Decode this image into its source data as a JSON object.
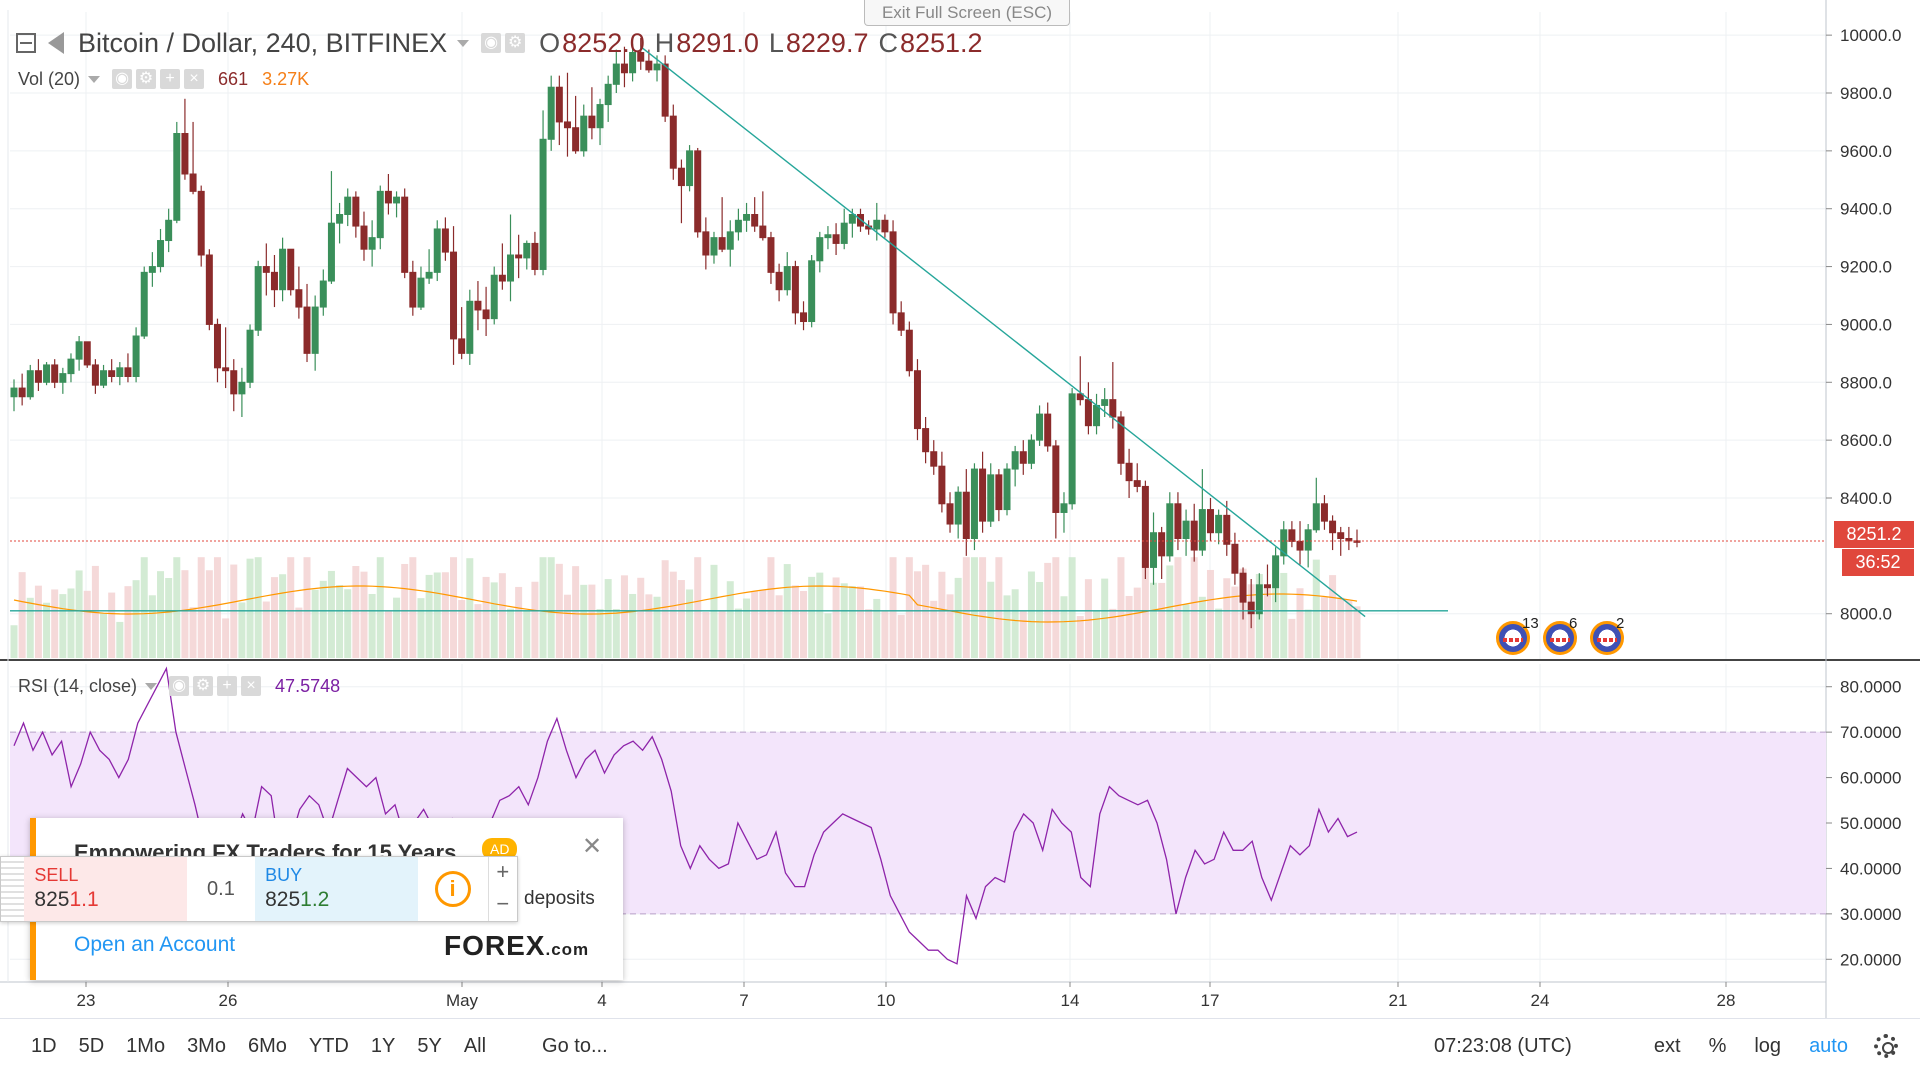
{
  "header": {
    "symbol": "Bitcoin / Dollar, 240, BITFINEX",
    "ohlc": [
      {
        "k": "O",
        "v": "8252.0"
      },
      {
        "k": "H",
        "v": "8291.0"
      },
      {
        "k": "L",
        "v": "8229.7"
      },
      {
        "k": "C",
        "v": "8251.2"
      }
    ]
  },
  "overlay": {
    "exit_fullscreen": "Exit Full Screen (ESC)"
  },
  "volume": {
    "label": "Vol (20)",
    "value": "661",
    "ma_value": "3.27K"
  },
  "rsi": {
    "label": "RSI (14, close)",
    "value": "47.5748"
  },
  "price_axis": {
    "ticks": [
      "10000.0",
      "9800.0",
      "9600.0",
      "9400.0",
      "9200.0",
      "9000.0",
      "8800.0",
      "8600.0",
      "8400.0",
      "8000.0"
    ],
    "last_price": "8251.2",
    "countdown": "36:52"
  },
  "rsi_axis": {
    "ticks": [
      "80.0000",
      "70.0000",
      "60.0000",
      "50.0000",
      "40.0000",
      "30.0000",
      "20.0000"
    ]
  },
  "time_axis": {
    "ticks": [
      "23",
      "26",
      "May",
      "4",
      "7",
      "10",
      "14",
      "17",
      "21",
      "24",
      "28"
    ]
  },
  "events": [
    {
      "count": "13"
    },
    {
      "count": "6"
    },
    {
      "count": "2"
    }
  ],
  "bottom_bar": {
    "ranges": [
      "1D",
      "5D",
      "1Mo",
      "3Mo",
      "6Mo",
      "YTD",
      "1Y",
      "5Y",
      "All"
    ],
    "goto": "Go to...",
    "clock": "07:23:08 (UTC)",
    "ext": "ext",
    "percent": "%",
    "log": "log",
    "auto": "auto"
  },
  "ad": {
    "headline": "Empowering FX Traders for 15 Years",
    "badge": "AD",
    "deposits": "deposits",
    "cta": "Open an Account",
    "logo_main": "FOREX",
    "logo_suffix": ".com"
  },
  "trade_widget": {
    "sell_label": "SELL",
    "sell_price_main": "825",
    "sell_price_tail": "1.1",
    "spread": "0.1",
    "buy_label": "BUY",
    "buy_price_main": "825",
    "buy_price_tail": "1.2"
  },
  "colors": {
    "up": "#3a8f5a",
    "down": "#8b2b2b",
    "trendline": "#26a69a",
    "rsi_line": "#8e24aa",
    "rsi_band": "#f3e5fb",
    "vol_ma": "#ff9800",
    "last_price": "#e0473c"
  },
  "chart_data": {
    "type": "candlestick",
    "candles": [
      [
        8750,
        8810,
        8700,
        8780
      ],
      [
        8780,
        8830,
        8720,
        8750
      ],
      [
        8750,
        8860,
        8740,
        8840
      ],
      [
        8840,
        8880,
        8770,
        8800
      ],
      [
        8800,
        8870,
        8790,
        8860
      ],
      [
        8860,
        8880,
        8780,
        8800
      ],
      [
        8800,
        8850,
        8760,
        8830
      ],
      [
        8830,
        8900,
        8800,
        8880
      ],
      [
        8880,
        8960,
        8840,
        8940
      ],
      [
        8940,
        8920,
        8850,
        8860
      ],
      [
        8860,
        8880,
        8760,
        8790
      ],
      [
        8790,
        8860,
        8780,
        8840
      ],
      [
        8840,
        8880,
        8800,
        8820
      ],
      [
        8820,
        8870,
        8790,
        8850
      ],
      [
        8850,
        8900,
        8800,
        8820
      ],
      [
        8820,
        8990,
        8800,
        8960
      ],
      [
        8960,
        9200,
        8950,
        9180
      ],
      [
        9180,
        9250,
        9130,
        9200
      ],
      [
        9200,
        9330,
        9180,
        9290
      ],
      [
        9290,
        9400,
        9250,
        9360
      ],
      [
        9360,
        9700,
        9350,
        9660
      ],
      [
        9660,
        9780,
        9500,
        9520
      ],
      [
        9520,
        9700,
        9450,
        9460
      ],
      [
        9460,
        9480,
        9200,
        9240
      ],
      [
        9240,
        9260,
        8980,
        9000
      ],
      [
        9000,
        9020,
        8800,
        8850
      ],
      [
        8850,
        8990,
        8780,
        8840
      ],
      [
        8840,
        8880,
        8700,
        8760
      ],
      [
        8760,
        8850,
        8680,
        8800
      ],
      [
        8800,
        9000,
        8780,
        8980
      ],
      [
        8980,
        9220,
        8960,
        9200
      ],
      [
        9200,
        9280,
        9100,
        9180
      ],
      [
        9180,
        9240,
        9060,
        9120
      ],
      [
        9120,
        9300,
        9080,
        9260
      ],
      [
        9260,
        9250,
        9100,
        9120
      ],
      [
        9120,
        9200,
        9020,
        9060
      ],
      [
        9060,
        9140,
        8870,
        8900
      ],
      [
        8900,
        9100,
        8840,
        9060
      ],
      [
        9060,
        9190,
        9030,
        9150
      ],
      [
        9150,
        9530,
        9140,
        9350
      ],
      [
        9350,
        9420,
        9280,
        9380
      ],
      [
        9380,
        9470,
        9340,
        9440
      ],
      [
        9440,
        9460,
        9300,
        9340
      ],
      [
        9340,
        9390,
        9220,
        9260
      ],
      [
        9260,
        9360,
        9200,
        9300
      ],
      [
        9300,
        9480,
        9260,
        9460
      ],
      [
        9460,
        9520,
        9380,
        9420
      ],
      [
        9420,
        9460,
        9370,
        9440
      ],
      [
        9440,
        9470,
        9160,
        9180
      ],
      [
        9180,
        9220,
        9030,
        9060
      ],
      [
        9060,
        9200,
        9050,
        9160
      ],
      [
        9160,
        9260,
        9140,
        9180
      ],
      [
        9180,
        9360,
        9150,
        9330
      ],
      [
        9330,
        9370,
        9220,
        9250
      ],
      [
        9250,
        9340,
        8860,
        8950
      ],
      [
        8950,
        9060,
        8880,
        8900
      ],
      [
        8900,
        9120,
        8860,
        9080
      ],
      [
        9080,
        9150,
        8980,
        9050
      ],
      [
        9050,
        9130,
        8960,
        9020
      ],
      [
        9020,
        9200,
        9000,
        9170
      ],
      [
        9170,
        9280,
        9120,
        9150
      ],
      [
        9150,
        9380,
        9080,
        9240
      ],
      [
        9240,
        9310,
        9160,
        9230
      ],
      [
        9230,
        9290,
        9190,
        9280
      ],
      [
        9280,
        9320,
        9170,
        9190
      ],
      [
        9190,
        9740,
        9170,
        9640
      ],
      [
        9640,
        9860,
        9600,
        9820
      ],
      [
        9820,
        9860,
        9620,
        9700
      ],
      [
        9700,
        9870,
        9580,
        9680
      ],
      [
        9680,
        9790,
        9590,
        9600
      ],
      [
        9600,
        9760,
        9580,
        9720
      ],
      [
        9720,
        9820,
        9640,
        9680
      ],
      [
        9680,
        9780,
        9620,
        9760
      ],
      [
        9760,
        9860,
        9700,
        9830
      ],
      [
        9830,
        9950,
        9800,
        9900
      ],
      [
        9900,
        9960,
        9820,
        9870
      ],
      [
        9870,
        9970,
        9840,
        9940
      ],
      [
        9940,
        9990,
        9880,
        9910
      ],
      [
        9910,
        9950,
        9870,
        9880
      ],
      [
        9880,
        9930,
        9840,
        9900
      ],
      [
        9900,
        9930,
        9700,
        9720
      ],
      [
        9720,
        9760,
        9500,
        9540
      ],
      [
        9540,
        9570,
        9350,
        9480
      ],
      [
        9480,
        9620,
        9460,
        9600
      ],
      [
        9600,
        9610,
        9300,
        9320
      ],
      [
        9320,
        9370,
        9190,
        9240
      ],
      [
        9240,
        9320,
        9210,
        9300
      ],
      [
        9300,
        9440,
        9250,
        9260
      ],
      [
        9260,
        9360,
        9200,
        9320
      ],
      [
        9320,
        9400,
        9290,
        9360
      ],
      [
        9360,
        9420,
        9320,
        9380
      ],
      [
        9380,
        9440,
        9320,
        9340
      ],
      [
        9340,
        9460,
        9290,
        9300
      ],
      [
        9300,
        9320,
        9140,
        9180
      ],
      [
        9180,
        9210,
        9080,
        9120
      ],
      [
        9120,
        9250,
        9100,
        9200
      ],
      [
        9200,
        9220,
        9000,
        9040
      ],
      [
        9040,
        9080,
        8980,
        9010
      ],
      [
        9010,
        9240,
        8990,
        9220
      ],
      [
        9220,
        9320,
        9180,
        9300
      ],
      [
        9300,
        9340,
        9260,
        9310
      ],
      [
        9310,
        9350,
        9240,
        9280
      ],
      [
        9280,
        9400,
        9260,
        9350
      ],
      [
        9350,
        9400,
        9300,
        9380
      ],
      [
        9380,
        9400,
        9320,
        9340
      ],
      [
        9340,
        9360,
        9310,
        9330
      ],
      [
        9330,
        9420,
        9290,
        9360
      ],
      [
        9360,
        9380,
        9300,
        9320
      ],
      [
        9320,
        9360,
        9000,
        9040
      ],
      [
        9040,
        9080,
        8960,
        8980
      ],
      [
        8980,
        9010,
        8820,
        8840
      ],
      [
        8840,
        8880,
        8600,
        8640
      ],
      [
        8640,
        8680,
        8520,
        8560
      ],
      [
        8560,
        8600,
        8480,
        8510
      ],
      [
        8510,
        8560,
        8350,
        8380
      ],
      [
        8380,
        8420,
        8280,
        8310
      ],
      [
        8310,
        8440,
        8260,
        8420
      ],
      [
        8420,
        8500,
        8200,
        8260
      ],
      [
        8260,
        8520,
        8220,
        8500
      ],
      [
        8500,
        8560,
        8280,
        8320
      ],
      [
        8320,
        8520,
        8300,
        8480
      ],
      [
        8480,
        8500,
        8320,
        8360
      ],
      [
        8360,
        8520,
        8340,
        8500
      ],
      [
        8500,
        8580,
        8440,
        8560
      ],
      [
        8560,
        8600,
        8480,
        8520
      ],
      [
        8520,
        8620,
        8500,
        8600
      ],
      [
        8600,
        8720,
        8580,
        8690
      ],
      [
        8690,
        8730,
        8560,
        8580
      ],
      [
        8580,
        8600,
        8260,
        8350
      ],
      [
        8350,
        8420,
        8280,
        8380
      ],
      [
        8380,
        8780,
        8360,
        8760
      ],
      [
        8760,
        8890,
        8720,
        8740
      ],
      [
        8740,
        8800,
        8620,
        8650
      ],
      [
        8650,
        8760,
        8620,
        8720
      ],
      [
        8720,
        8780,
        8680,
        8740
      ],
      [
        8740,
        8870,
        8640,
        8680
      ],
      [
        8680,
        8700,
        8480,
        8520
      ],
      [
        8520,
        8570,
        8400,
        8460
      ],
      [
        8460,
        8520,
        8420,
        8440
      ],
      [
        8440,
        8460,
        8120,
        8160
      ],
      [
        8160,
        8350,
        8100,
        8280
      ],
      [
        8280,
        8300,
        8120,
        8200
      ],
      [
        8200,
        8420,
        8180,
        8380
      ],
      [
        8380,
        8420,
        8220,
        8260
      ],
      [
        8260,
        8360,
        8200,
        8320
      ],
      [
        8320,
        8380,
        8180,
        8220
      ],
      [
        8220,
        8500,
        8200,
        8360
      ],
      [
        8360,
        8400,
        8250,
        8280
      ],
      [
        8280,
        8360,
        8240,
        8340
      ],
      [
        8340,
        8390,
        8200,
        8240
      ],
      [
        8240,
        8280,
        8100,
        8140
      ],
      [
        8140,
        8160,
        7980,
        8040
      ],
      [
        8040,
        8120,
        7950,
        8000
      ],
      [
        8000,
        8140,
        7980,
        8100
      ],
      [
        8100,
        8170,
        8060,
        8090
      ],
      [
        8090,
        8230,
        8040,
        8200
      ],
      [
        8200,
        8320,
        8170,
        8290
      ],
      [
        8290,
        8320,
        8230,
        8250
      ],
      [
        8250,
        8320,
        8170,
        8220
      ],
      [
        8220,
        8310,
        8160,
        8290
      ],
      [
        8290,
        8470,
        8280,
        8380
      ],
      [
        8380,
        8410,
        8290,
        8320
      ],
      [
        8320,
        8340,
        8220,
        8280
      ],
      [
        8280,
        8300,
        8200,
        8260
      ],
      [
        8260,
        8300,
        8220,
        8252
      ],
      [
        8252,
        8291,
        8229.7,
        8251.2
      ]
    ],
    "trendlines": [
      {
        "type": "diagonal",
        "from_candle": 77,
        "from_price": 9960,
        "to_candle": 166,
        "to_price": 7990
      },
      {
        "type": "horizontal",
        "price": 8010
      }
    ],
    "rsi_values": [
      67,
      72,
      66,
      70,
      65,
      68,
      58,
      63,
      70,
      66,
      64,
      60,
      64,
      72,
      76,
      80,
      84,
      70,
      62,
      54,
      45,
      40,
      42,
      46,
      52,
      48,
      58,
      56,
      42,
      46,
      53,
      56,
      54,
      48,
      55,
      62,
      60,
      58,
      60,
      52,
      54,
      47,
      50,
      53,
      49,
      50,
      51,
      44,
      40,
      45,
      50,
      55,
      56,
      58,
      54,
      60,
      68,
      73,
      66,
      60,
      64,
      66,
      61,
      65,
      67,
      68,
      66,
      69,
      64,
      57,
      45,
      40,
      45,
      42,
      40,
      41,
      50,
      46,
      42,
      43,
      48,
      39,
      36,
      36,
      43,
      48,
      50,
      52,
      51,
      50,
      49,
      42,
      34,
      30,
      26,
      24,
      22,
      22,
      20,
      19,
      34,
      29,
      36,
      38,
      37,
      48,
      52,
      50,
      44,
      53,
      50,
      48,
      38,
      36,
      52,
      58,
      56,
      55,
      54,
      55,
      50,
      42,
      30,
      38,
      44,
      41,
      42,
      48,
      44,
      44,
      46,
      38,
      33,
      39,
      45,
      43,
      45,
      53,
      48,
      51,
      47,
      48
    ],
    "rsi_band": [
      30,
      70
    ],
    "rsi_ylim": [
      15,
      85
    ],
    "price_ylim": [
      7840,
      10080
    ]
  }
}
